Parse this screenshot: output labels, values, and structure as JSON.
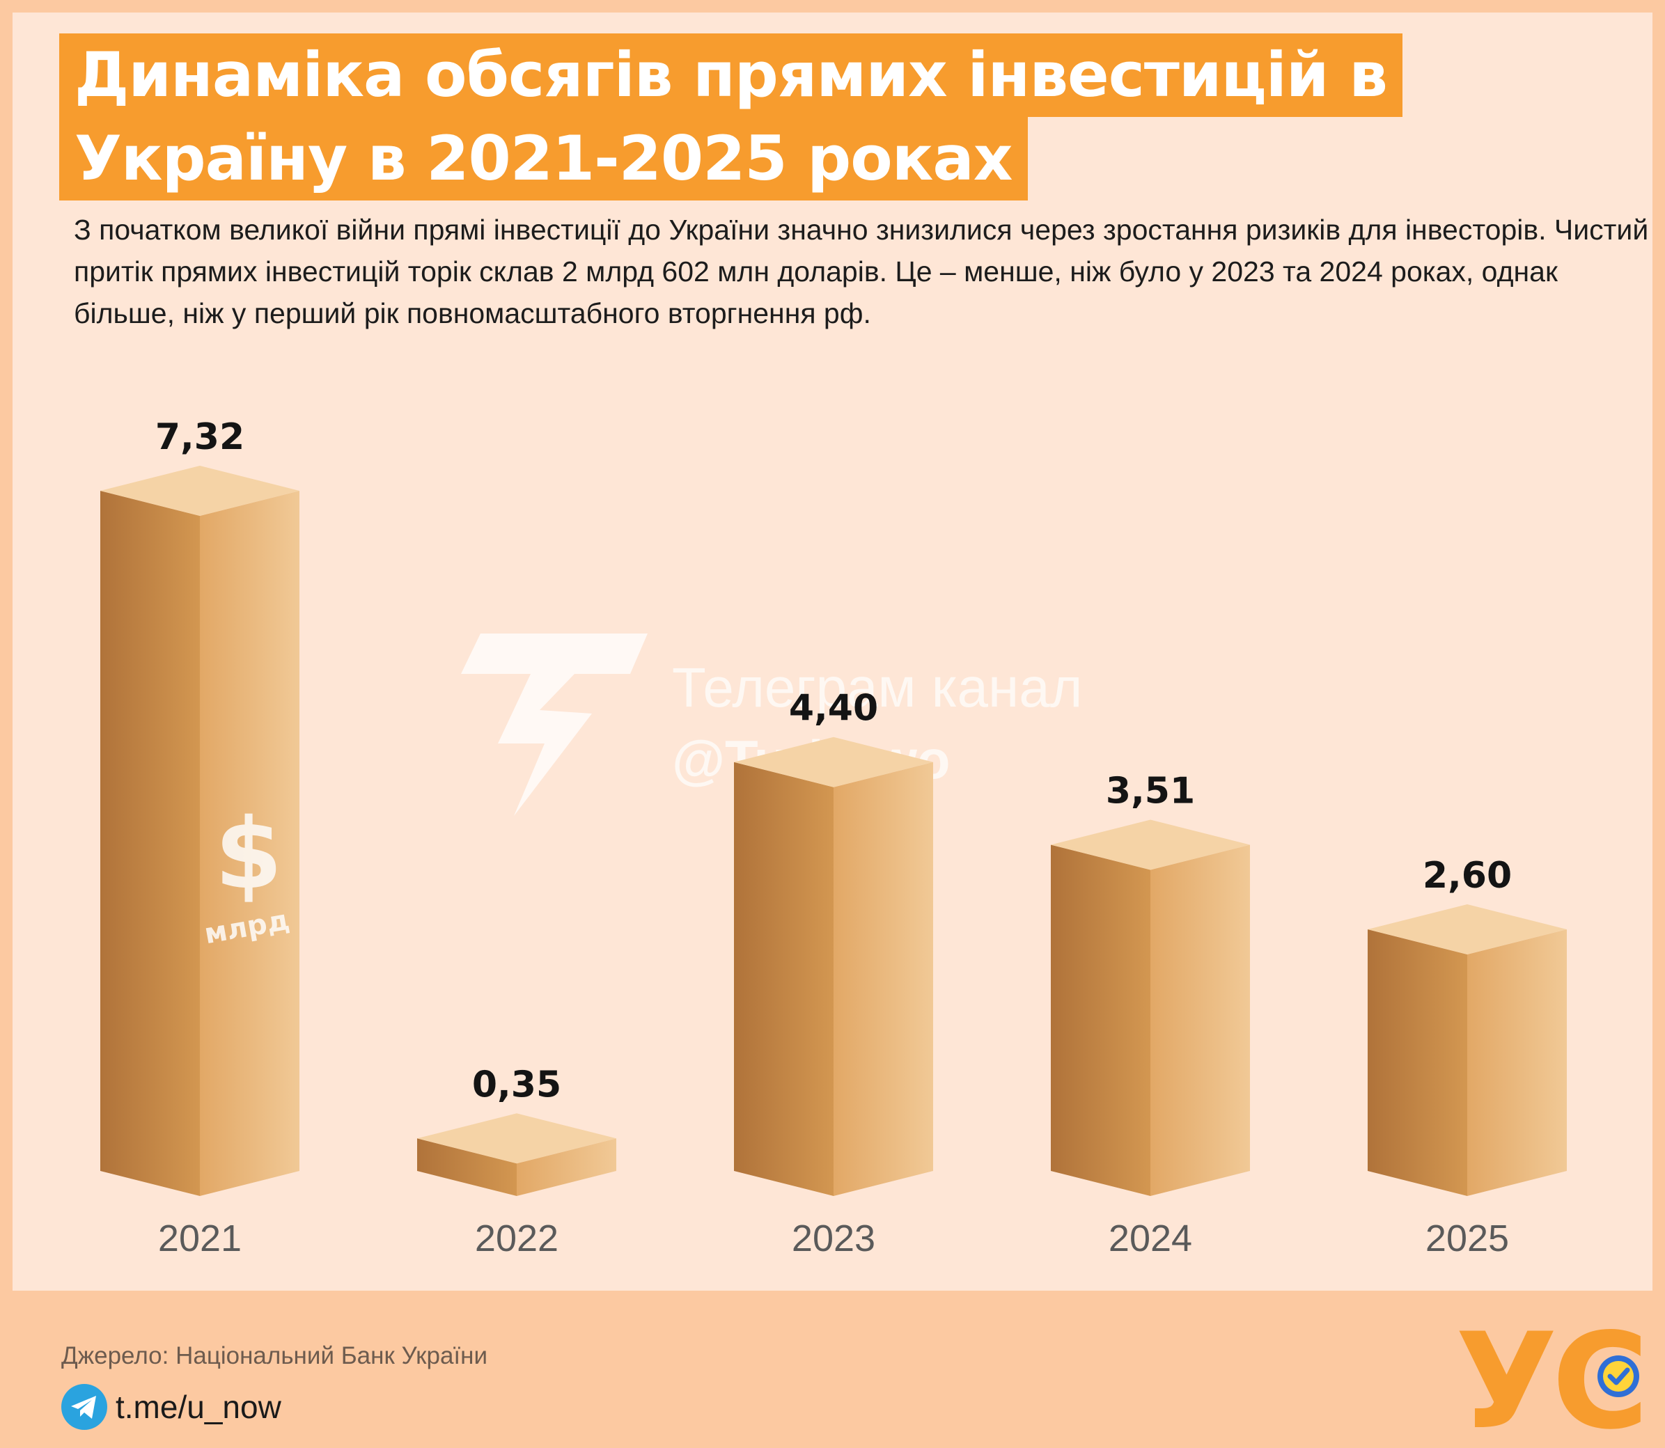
{
  "title": {
    "line1": "Динаміка обсягів прямих інвестицій в",
    "line2": "Україну в 2021-2025 роках"
  },
  "subtitle": "З початком великої війни прямі інвестиції до України значно знизилися через зростання ризиків для інвесторів. Чистий притік прямих інвестицій торік склав 2 млрд 602 млн доларів. Це – менше, ніж було у 2023 та 2024 роках, однак більше, ніж у перший рік повномасштабного вторгнення рф.",
  "chart_data": {
    "type": "bar",
    "categories": [
      "2021",
      "2022",
      "2023",
      "2024",
      "2025"
    ],
    "values": [
      7.32,
      0.35,
      4.4,
      3.51,
      2.6
    ],
    "value_labels": [
      "7,32",
      "0,35",
      "4,40",
      "3,51",
      "2,60"
    ],
    "unit_symbol": "$",
    "unit_label": "млрд",
    "ylim": [
      0,
      7.32
    ],
    "grid": false,
    "legend": "none",
    "colors": {
      "front_left": "#b8793a",
      "front_mid": "#dba062",
      "front_right": "#f0c690",
      "top": "#f5d3a6"
    }
  },
  "watermark": {
    "line1": "Телеграм канал",
    "line2": "@Turbowo",
    "icon": "lightning-t-logo-icon"
  },
  "footer": {
    "source": "Джерело: Національний Банк України",
    "telegram_link": "t.me/u_now",
    "telegram_icon": "telegram-icon",
    "logo_text": "УС",
    "logo_badge_icon": "verified-badge-icon",
    "logo_color": "#f79c2e"
  }
}
